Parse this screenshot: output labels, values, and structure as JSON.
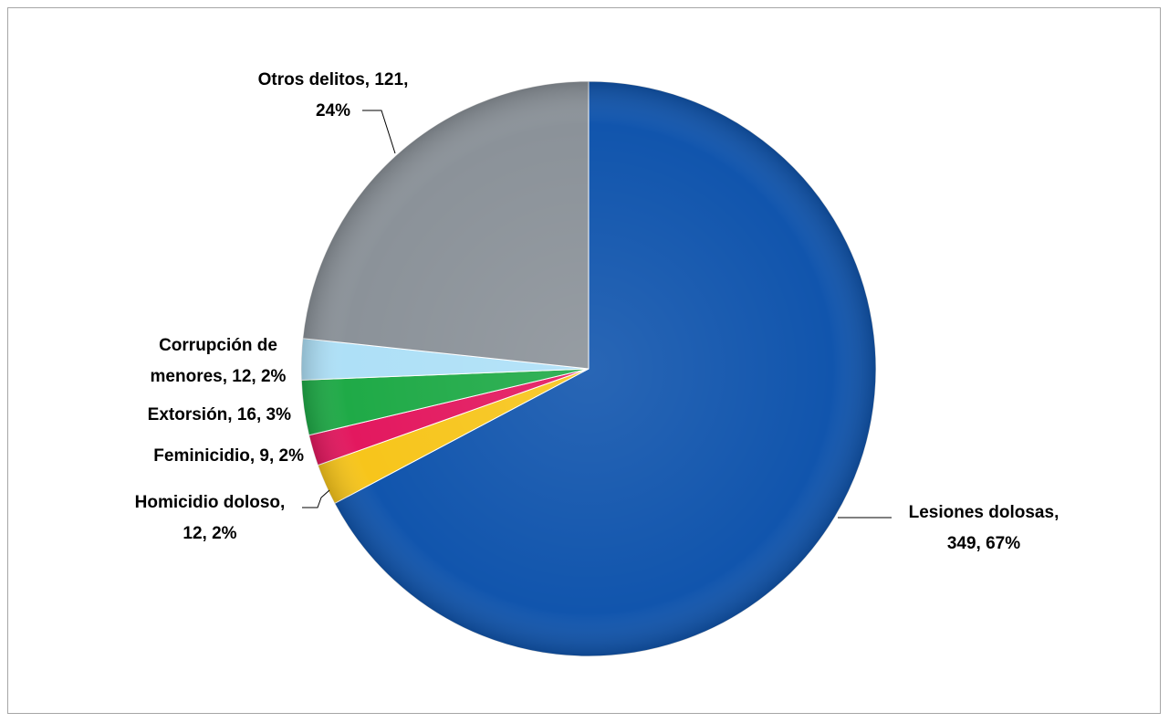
{
  "chart_data": {
    "type": "pie",
    "title": "",
    "slices": [
      {
        "label": "Lesiones dolosas",
        "value": 349,
        "percent": "67%",
        "color": "#1155ad",
        "line1": "Lesiones dolosas,",
        "line2": "349, 67%"
      },
      {
        "label": "Homicidio doloso",
        "value": 12,
        "percent": "2%",
        "color": "#f7c51b",
        "line1": "Homicidio doloso,",
        "line2": "12, 2%"
      },
      {
        "label": "Feminicidio",
        "value": 9,
        "percent": "2%",
        "color": "#e3185f",
        "line1": "Feminicidio, 9, 2%",
        "line2": ""
      },
      {
        "label": "Extorsión",
        "value": 16,
        "percent": "3%",
        "color": "#1faa47",
        "line1": "Extorsión, 16, 3%",
        "line2": ""
      },
      {
        "label": "Corrupción de menores",
        "value": 12,
        "percent": "2%",
        "color": "#aee0f7",
        "line1": "Corrupción de",
        "line2": "menores, 12, 2%"
      },
      {
        "label": "Otros delitos",
        "value": 121,
        "percent": "24%",
        "color": "#8b9299",
        "line1": "Otros delitos, 121,",
        "line2": "24%"
      }
    ],
    "start_angle_deg": 0,
    "direction": "clockwise",
    "legend": "none"
  }
}
